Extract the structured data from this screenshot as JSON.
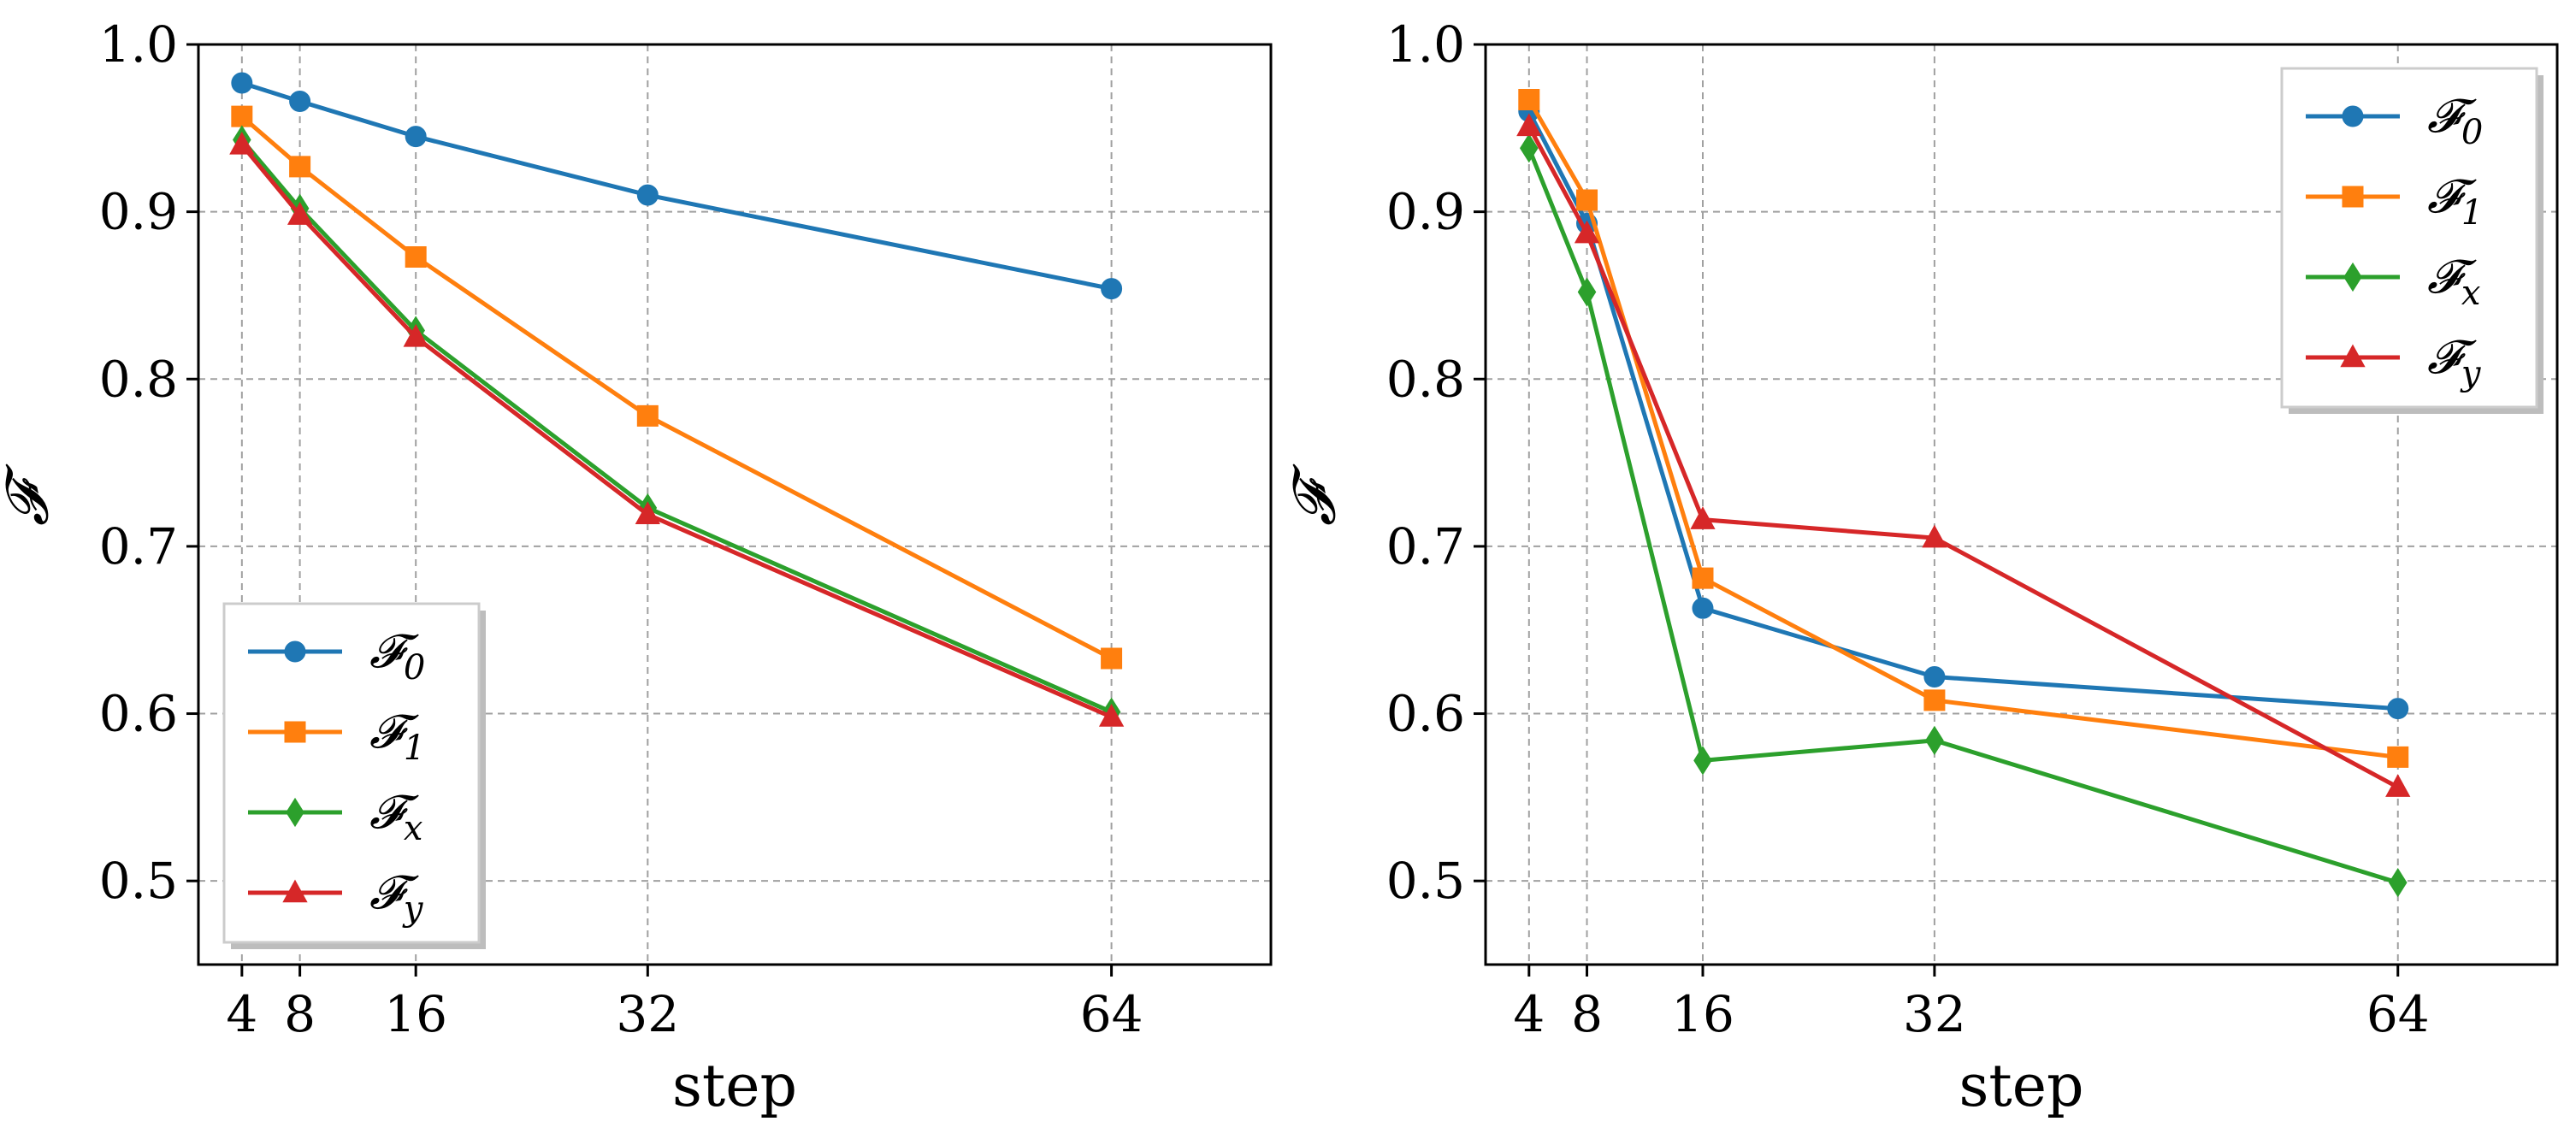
{
  "chart_data": [
    {
      "type": "line",
      "title": "",
      "xlabel": "step",
      "ylabel": "𝓕",
      "x": [
        4,
        8,
        16,
        32,
        64
      ],
      "xticks": [
        "4",
        "8",
        "16",
        "32",
        "64"
      ],
      "yticks": [
        "0.5",
        "0.6",
        "0.7",
        "0.8",
        "0.9",
        "1.0"
      ],
      "xlim": [
        1,
        75
      ],
      "ylim": [
        0.45,
        1.0
      ],
      "grid": true,
      "legend_position": "lower-left",
      "series": [
        {
          "name": "𝓕",
          "sub": "0",
          "color": "#1f77b4",
          "marker": "circle",
          "values": [
            0.977,
            0.966,
            0.945,
            0.91,
            0.854
          ]
        },
        {
          "name": "𝓕",
          "sub": "1",
          "color": "#ff7f0e",
          "marker": "square",
          "values": [
            0.957,
            0.927,
            0.873,
            0.778,
            0.633
          ]
        },
        {
          "name": "𝓕",
          "sub": "x",
          "color": "#2ca02c",
          "marker": "diamond",
          "values": [
            0.943,
            0.902,
            0.829,
            0.723,
            0.601
          ]
        },
        {
          "name": "𝓕",
          "sub": "y",
          "color": "#d62728",
          "marker": "triangle",
          "values": [
            0.94,
            0.898,
            0.825,
            0.719,
            0.598
          ]
        }
      ]
    },
    {
      "type": "line",
      "title": "",
      "xlabel": "step",
      "ylabel": "𝓕",
      "x": [
        4,
        8,
        16,
        32,
        64
      ],
      "xticks": [
        "4",
        "8",
        "16",
        "32",
        "64"
      ],
      "yticks": [
        "0.5",
        "0.6",
        "0.7",
        "0.8",
        "0.9",
        "1.0"
      ],
      "xlim": [
        1,
        75
      ],
      "ylim": [
        0.45,
        1.0
      ],
      "grid": true,
      "legend_position": "top-right",
      "series": [
        {
          "name": "𝓕",
          "sub": "0",
          "color": "#1f77b4",
          "marker": "circle",
          "values": [
            0.96,
            0.893,
            0.663,
            0.622,
            0.603
          ]
        },
        {
          "name": "𝓕",
          "sub": "1",
          "color": "#ff7f0e",
          "marker": "square",
          "values": [
            0.967,
            0.907,
            0.681,
            0.608,
            0.574
          ]
        },
        {
          "name": "𝓕",
          "sub": "x",
          "color": "#2ca02c",
          "marker": "diamond",
          "values": [
            0.938,
            0.852,
            0.572,
            0.584,
            0.499
          ]
        },
        {
          "name": "𝓕",
          "sub": "y",
          "color": "#d62728",
          "marker": "triangle",
          "values": [
            0.951,
            0.887,
            0.716,
            0.705,
            0.556
          ]
        }
      ]
    }
  ]
}
